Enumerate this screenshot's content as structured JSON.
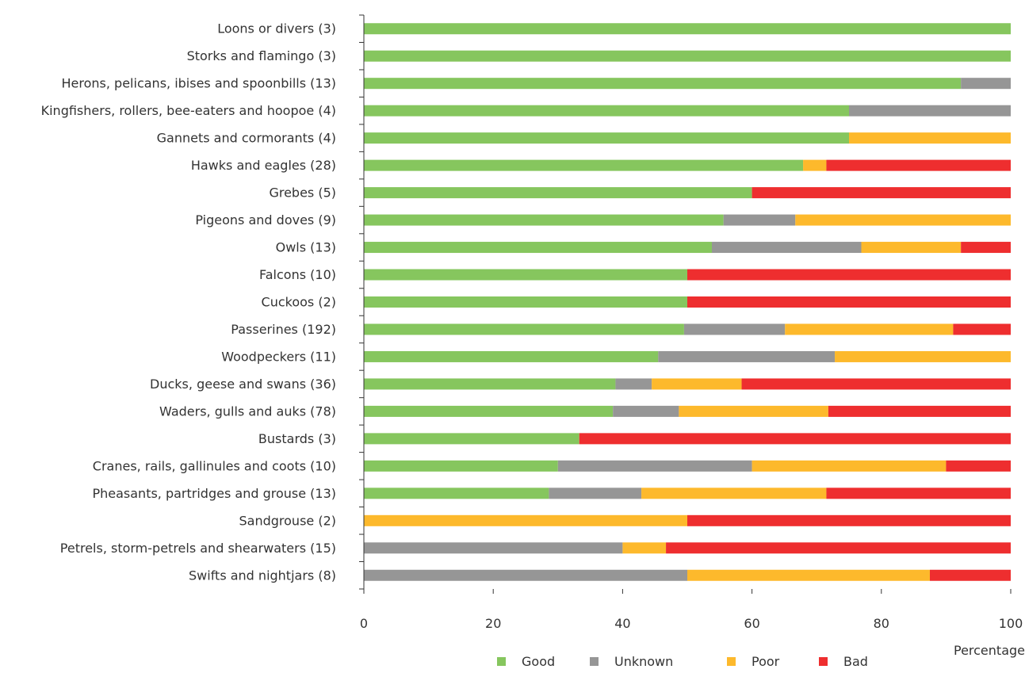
{
  "chart_data": {
    "type": "bar",
    "orientation": "horizontal",
    "stacked": true,
    "xlabel": "Percentage",
    "xlim": [
      0,
      100
    ],
    "xticks": [
      0,
      20,
      40,
      60,
      80,
      100
    ],
    "grid": false,
    "legend_position": "bottom",
    "categories": [
      "Loons or divers (3)",
      "Storks and flamingo (3)",
      "Herons, pelicans, ibises and spoonbills (13)",
      "Kingfishers, rollers, bee-eaters and hoopoe (4)",
      "Gannets and cormorants (4)",
      "Hawks and eagles (28)",
      "Grebes (5)",
      "Pigeons and doves (9)",
      "Owls (13)",
      "Falcons (10)",
      "Cuckoos (2)",
      "Passerines (192)",
      "Woodpeckers (11)",
      "Ducks, geese and swans (36)",
      "Waders, gulls and auks (78)",
      "Bustards (3)",
      "Cranes, rails, gallinules and coots (10)",
      "Pheasants, partridges and grouse (13)",
      "Sandgrouse (2)",
      "Petrels, storm-petrels and shearwaters (15)",
      "Swifts and nightjars (8)"
    ],
    "series": [
      {
        "name": "Good",
        "color": "#86c65e",
        "values": [
          100,
          100,
          92.3,
          75,
          75,
          67.9,
          60,
          55.6,
          53.8,
          50,
          50,
          49.5,
          45.5,
          38.9,
          38.5,
          33.3,
          30,
          28.6,
          0,
          0,
          0
        ]
      },
      {
        "name": "Unknown",
        "color": "#969696",
        "values": [
          0,
          0,
          7.7,
          25,
          0,
          0,
          0,
          11.1,
          23.1,
          0,
          0,
          15.6,
          27.3,
          5.6,
          10.2,
          0,
          30,
          14.3,
          0,
          40,
          50
        ]
      },
      {
        "name": "Poor",
        "color": "#fdb92c",
        "values": [
          0,
          0,
          0,
          0,
          25,
          3.6,
          0,
          33.3,
          15.4,
          0,
          0,
          26.0,
          27.2,
          13.9,
          23.1,
          0,
          30,
          28.6,
          50,
          6.7,
          37.5
        ]
      },
      {
        "name": "Bad",
        "color": "#ee2e2f",
        "values": [
          0,
          0,
          0,
          0,
          0,
          28.5,
          40,
          0,
          7.7,
          50,
          50,
          8.9,
          0,
          41.6,
          28.2,
          66.7,
          10,
          28.5,
          50,
          53.3,
          12.5
        ]
      }
    ]
  }
}
